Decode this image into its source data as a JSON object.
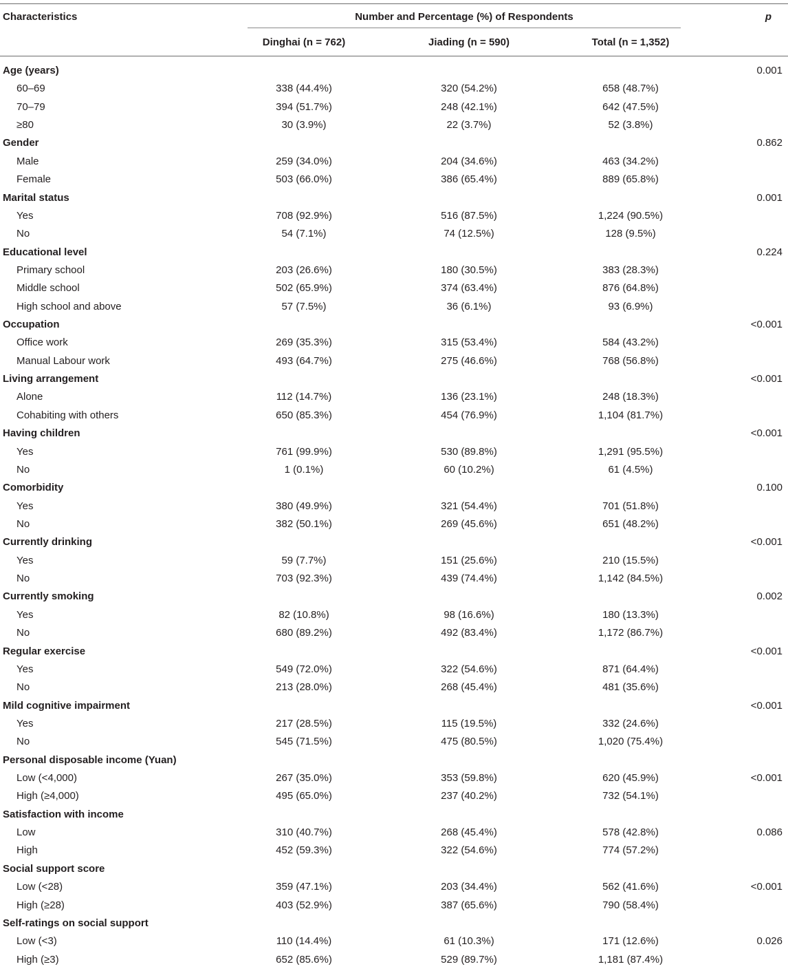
{
  "header": {
    "characteristics": "Characteristics",
    "span_title": "Number and Percentage (%) of Respondents",
    "p_label": "p",
    "col_dinghai": "Dinghai (n = 762)",
    "col_jiading": "Jiading (n = 590)",
    "col_total": "Total (n = 1,352)"
  },
  "rows": [
    {
      "label": "Age (years)",
      "cat": true,
      "d": "",
      "j": "",
      "t": "",
      "p": "0.001"
    },
    {
      "label": "60–69",
      "d": "338 (44.4%)",
      "j": "320 (54.2%)",
      "t": "658 (48.7%)",
      "p": ""
    },
    {
      "label": "70–79",
      "d": "394 (51.7%)",
      "j": "248 (42.1%)",
      "t": "642 (47.5%)",
      "p": ""
    },
    {
      "label": "≥80",
      "d": "30 (3.9%)",
      "j": "22 (3.7%)",
      "t": "52 (3.8%)",
      "p": ""
    },
    {
      "label": "Gender",
      "cat": true,
      "d": "",
      "j": "",
      "t": "",
      "p": "0.862"
    },
    {
      "label": "Male",
      "d": "259 (34.0%)",
      "j": "204 (34.6%)",
      "t": "463 (34.2%)",
      "p": ""
    },
    {
      "label": "Female",
      "d": "503 (66.0%)",
      "j": "386 (65.4%)",
      "t": "889 (65.8%)",
      "p": ""
    },
    {
      "label": "Marital status",
      "cat": true,
      "d": "",
      "j": "",
      "t": "",
      "p": "0.001"
    },
    {
      "label": "Yes",
      "d": "708 (92.9%)",
      "j": "516 (87.5%)",
      "t": "1,224 (90.5%)",
      "p": ""
    },
    {
      "label": "No",
      "d": "54 (7.1%)",
      "j": "74 (12.5%)",
      "t": "128 (9.5%)",
      "p": ""
    },
    {
      "label": "Educational level",
      "cat": true,
      "d": "",
      "j": "",
      "t": "",
      "p": "0.224"
    },
    {
      "label": "Primary school",
      "d": "203 (26.6%)",
      "j": "180 (30.5%)",
      "t": "383 (28.3%)",
      "p": ""
    },
    {
      "label": "Middle school",
      "d": "502 (65.9%)",
      "j": "374 (63.4%)",
      "t": "876 (64.8%)",
      "p": ""
    },
    {
      "label": "High school and above",
      "d": "57 (7.5%)",
      "j": "36 (6.1%)",
      "t": "93 (6.9%)",
      "p": ""
    },
    {
      "label": "Occupation",
      "cat": true,
      "d": "",
      "j": "",
      "t": "",
      "p": "<0.001"
    },
    {
      "label": "Office work",
      "d": "269 (35.3%)",
      "j": "315 (53.4%)",
      "t": "584 (43.2%)",
      "p": ""
    },
    {
      "label": "Manual Labour work",
      "d": "493 (64.7%)",
      "j": "275 (46.6%)",
      "t": "768 (56.8%)",
      "p": ""
    },
    {
      "label": "Living arrangement",
      "cat": true,
      "d": "",
      "j": "",
      "t": "",
      "p": "<0.001"
    },
    {
      "label": "Alone",
      "d": "112 (14.7%)",
      "j": "136 (23.1%)",
      "t": "248 (18.3%)",
      "p": ""
    },
    {
      "label": "Cohabiting with others",
      "d": "650 (85.3%)",
      "j": "454 (76.9%)",
      "t": "1,104 (81.7%)",
      "p": ""
    },
    {
      "label": "Having children",
      "cat": true,
      "d": "",
      "j": "",
      "t": "",
      "p": "<0.001"
    },
    {
      "label": "Yes",
      "d": "761 (99.9%)",
      "j": "530 (89.8%)",
      "t": "1,291 (95.5%)",
      "p": ""
    },
    {
      "label": "No",
      "d": "1 (0.1%)",
      "j": "60 (10.2%)",
      "t": "61 (4.5%)",
      "p": ""
    },
    {
      "label": "Comorbidity",
      "cat": true,
      "d": "",
      "j": "",
      "t": "",
      "p": "0.100"
    },
    {
      "label": "Yes",
      "d": "380 (49.9%)",
      "j": "321 (54.4%)",
      "t": "701 (51.8%)",
      "p": ""
    },
    {
      "label": "No",
      "d": "382 (50.1%)",
      "j": "269 (45.6%)",
      "t": "651 (48.2%)",
      "p": ""
    },
    {
      "label": "Currently drinking",
      "cat": true,
      "d": "",
      "j": "",
      "t": "",
      "p": "<0.001"
    },
    {
      "label": "Yes",
      "d": "59 (7.7%)",
      "j": "151 (25.6%)",
      "t": "210 (15.5%)",
      "p": ""
    },
    {
      "label": "No",
      "d": "703 (92.3%)",
      "j": "439 (74.4%)",
      "t": "1,142 (84.5%)",
      "p": ""
    },
    {
      "label": "Currently smoking",
      "cat": true,
      "d": "",
      "j": "",
      "t": "",
      "p": "0.002"
    },
    {
      "label": "Yes",
      "d": "82 (10.8%)",
      "j": "98 (16.6%)",
      "t": "180 (13.3%)",
      "p": ""
    },
    {
      "label": "No",
      "d": "680 (89.2%)",
      "j": "492 (83.4%)",
      "t": "1,172 (86.7%)",
      "p": ""
    },
    {
      "label": "Regular exercise",
      "cat": true,
      "d": "",
      "j": "",
      "t": "",
      "p": "<0.001"
    },
    {
      "label": "Yes",
      "d": "549 (72.0%)",
      "j": "322 (54.6%)",
      "t": "871 (64.4%)",
      "p": ""
    },
    {
      "label": "No",
      "d": "213 (28.0%)",
      "j": "268 (45.4%)",
      "t": "481 (35.6%)",
      "p": ""
    },
    {
      "label": "Mild cognitive impairment",
      "cat": true,
      "d": "",
      "j": "",
      "t": "",
      "p": "<0.001"
    },
    {
      "label": "Yes",
      "d": "217 (28.5%)",
      "j": "115 (19.5%)",
      "t": "332 (24.6%)",
      "p": ""
    },
    {
      "label": "No",
      "d": "545 (71.5%)",
      "j": "475 (80.5%)",
      "t": "1,020 (75.4%)",
      "p": ""
    },
    {
      "label": "Personal disposable income (Yuan)",
      "cat": true,
      "d": "",
      "j": "",
      "t": "",
      "p": ""
    },
    {
      "label": "Low (<4,000)",
      "d": "267 (35.0%)",
      "j": "353 (59.8%)",
      "t": "620 (45.9%)",
      "p": "<0.001"
    },
    {
      "label": "High (≥4,000)",
      "d": "495 (65.0%)",
      "j": "237 (40.2%)",
      "t": "732 (54.1%)",
      "p": ""
    },
    {
      "label": "Satisfaction with income",
      "cat": true,
      "d": "",
      "j": "",
      "t": "",
      "p": ""
    },
    {
      "label": "Low",
      "d": "310 (40.7%)",
      "j": "268 (45.4%)",
      "t": "578 (42.8%)",
      "p": "0.086"
    },
    {
      "label": "High",
      "d": "452 (59.3%)",
      "j": "322 (54.6%)",
      "t": "774 (57.2%)",
      "p": ""
    },
    {
      "label": "Social support score",
      "cat": true,
      "d": "",
      "j": "",
      "t": "",
      "p": ""
    },
    {
      "label": "Low (<28)",
      "d": "359 (47.1%)",
      "j": "203 (34.4%)",
      "t": "562 (41.6%)",
      "p": "<0.001"
    },
    {
      "label": "High (≥28)",
      "d": "403 (52.9%)",
      "j": "387 (65.6%)",
      "t": "790 (58.4%)",
      "p": ""
    },
    {
      "label": "Self-ratings on social support",
      "cat": true,
      "d": "",
      "j": "",
      "t": "",
      "p": ""
    },
    {
      "label": "Low (<3)",
      "d": "110 (14.4%)",
      "j": "61 (10.3%)",
      "t": "171 (12.6%)",
      "p": "0.026"
    },
    {
      "label": "High (≥3)",
      "d": "652 (85.6%)",
      "j": "529 (89.7%)",
      "t": "1,181 (87.4%)",
      "p": ""
    }
  ]
}
